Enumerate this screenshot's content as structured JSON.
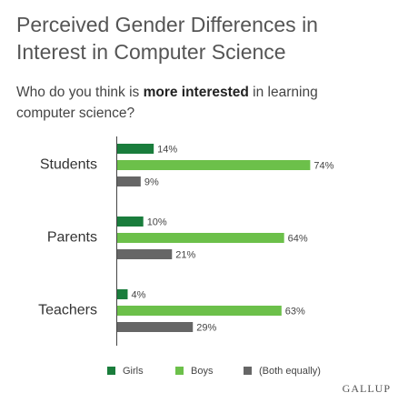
{
  "chart_data": {
    "type": "bar",
    "orientation": "horizontal",
    "title": "Perceived Gender Differences in Interest in Computer Science",
    "subtitle": [
      "Who do you think is ",
      "more interested",
      " in learning computer science?"
    ],
    "categories": [
      "Students",
      "Parents",
      "Teachers"
    ],
    "series": [
      {
        "name": "Girls",
        "color": "#1a7d3c",
        "values": [
          14,
          10,
          4
        ],
        "value_labels": [
          "14%",
          "10%",
          "4%"
        ]
      },
      {
        "name": "Boys",
        "color": "#6cc04a",
        "values": [
          74,
          64,
          63
        ],
        "value_labels": [
          "74%",
          "64%",
          "63%"
        ]
      },
      {
        "name": "(Both equally)",
        "color": "#666666",
        "values": [
          9,
          21,
          29
        ],
        "value_labels": [
          "9%",
          "21%",
          "29%"
        ]
      }
    ],
    "legend": "bottom",
    "source": "GALLUP"
  }
}
